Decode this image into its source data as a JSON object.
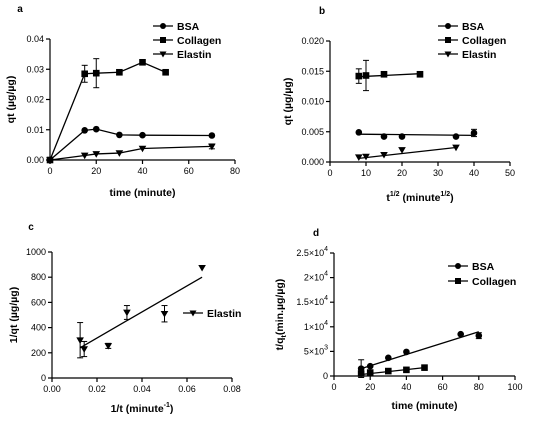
{
  "chart_data": [
    {
      "panel": "a",
      "type": "line",
      "xlabel": "time (minute)",
      "ylabel": "qt (µg/µg)",
      "xlim": [
        0,
        80
      ],
      "ylim": [
        0,
        0.04
      ],
      "xticks": [
        0,
        20,
        40,
        60,
        80
      ],
      "yticks": [
        0.0,
        0.01,
        0.02,
        0.03,
        0.04
      ],
      "ytick_labels": [
        "0.00",
        "0.01",
        "0.02",
        "0.03",
        "0.04"
      ],
      "legend": "right",
      "series": [
        {
          "name": "BSA",
          "marker": "circle",
          "x": [
            0,
            15,
            20,
            30,
            40,
            70
          ],
          "y": [
            0,
            0.0098,
            0.0102,
            0.0083,
            0.0082,
            0.0081
          ],
          "err": [
            0,
            0,
            0,
            0,
            0,
            0
          ]
        },
        {
          "name": "Collagen",
          "marker": "square",
          "x": [
            0,
            15,
            20,
            30,
            40,
            50
          ],
          "y": [
            0,
            0.0285,
            0.0287,
            0.029,
            0.0323,
            0.029
          ],
          "err": [
            0,
            0.0028,
            0.0048,
            0,
            0.0005,
            0.0007
          ]
        },
        {
          "name": "Elastin",
          "marker": "triangle-down",
          "x": [
            0,
            15,
            20,
            30,
            40,
            70
          ],
          "y": [
            0,
            0.0015,
            0.002,
            0.0023,
            0.0038,
            0.0045
          ],
          "err": [
            0,
            0,
            0,
            0,
            0,
            0.0008
          ]
        }
      ]
    },
    {
      "panel": "b",
      "type": "scatter",
      "xlabel_base": "t",
      "xlabel_sup": "1/2",
      "xlabel_unit_base": "(minute",
      "xlabel_unit_sup": "1/2",
      "xlabel_unit_end": ")",
      "ylabel": "qt (µg/µg)",
      "xlim": [
        0,
        50
      ],
      "ylim": [
        0,
        0.02
      ],
      "xticks": [
        0,
        10,
        20,
        30,
        40,
        50
      ],
      "yticks": [
        0,
        0.005,
        0.01,
        0.015,
        0.02
      ],
      "ytick_labels": [
        "0.000",
        "0.005",
        "0.010",
        "0.015",
        "0.020"
      ],
      "legend": "top-right",
      "series": [
        {
          "name": "BSA",
          "marker": "circle",
          "x": [
            8,
            15,
            20,
            35,
            40
          ],
          "y": [
            0.0049,
            0.0042,
            0.0042,
            0.0042,
            0.0048
          ],
          "err": [
            0,
            0,
            0,
            0,
            0.0006
          ],
          "fit": [
            [
              8,
              0.0046
            ],
            [
              40,
              0.0044
            ]
          ]
        },
        {
          "name": "Collagen",
          "marker": "square",
          "x": [
            8,
            10,
            15,
            25
          ],
          "y": [
            0.0142,
            0.0143,
            0.0145,
            0.0145
          ],
          "err": [
            0.0012,
            0.0025,
            0,
            0
          ],
          "fit": [
            [
              8,
              0.0141
            ],
            [
              25,
              0.0146
            ]
          ]
        },
        {
          "name": "Elastin",
          "marker": "triangle-down",
          "x": [
            8,
            10,
            15,
            20,
            35
          ],
          "y": [
            0.0008,
            0.0009,
            0.0012,
            0.002,
            0.0024
          ],
          "err": [
            0,
            0,
            0,
            0,
            0
          ],
          "fit": [
            [
              8,
              0.0006
            ],
            [
              35,
              0.0024
            ]
          ]
        }
      ]
    },
    {
      "panel": "c",
      "type": "scatter",
      "xlabel_base": "1/t (minute",
      "xlabel_sup": "-1",
      "xlabel_end": ")",
      "ylabel": "1/qt (µg/µg)",
      "xlim": [
        0,
        0.08
      ],
      "ylim": [
        0,
        1000
      ],
      "xticks": [
        0,
        0.02,
        0.04,
        0.06,
        0.08
      ],
      "xtick_labels": [
        "0.00",
        "0.02",
        "0.04",
        "0.06",
        "0.08"
      ],
      "yticks": [
        0,
        200,
        400,
        600,
        800,
        1000
      ],
      "legend": "right",
      "series": [
        {
          "name": "Elastin",
          "marker": "triangle-down",
          "x": [
            0.0125,
            0.0143,
            0.025,
            0.0333,
            0.05,
            0.0667
          ],
          "y": [
            300,
            230,
            255,
            520,
            510,
            875
          ],
          "err": [
            140,
            60,
            20,
            55,
            65,
            0
          ],
          "fit": [
            [
              0.0125,
              240
            ],
            [
              0.0667,
              800
            ]
          ]
        }
      ]
    },
    {
      "panel": "d",
      "type": "scatter",
      "xlabel": "time (minute)",
      "ylabel_base": "t/q",
      "ylabel_sub": "t",
      "ylabel_end": "(min.µg/µg)",
      "xlim": [
        0,
        100
      ],
      "ylim": [
        0,
        25000
      ],
      "xticks": [
        0,
        20,
        40,
        60,
        80,
        100
      ],
      "yticks": [
        0,
        5000,
        10000,
        15000,
        20000,
        25000
      ],
      "ytick_labels": [
        [
          "0",
          ""
        ],
        [
          "5×10",
          "3"
        ],
        [
          "1×10",
          "4"
        ],
        [
          "1.5×10",
          "4"
        ],
        [
          "2×10",
          "4"
        ],
        [
          "2.5×10",
          "4"
        ]
      ],
      "legend": "top-right",
      "series": [
        {
          "name": "BSA",
          "marker": "circle",
          "x": [
            15,
            20,
            30,
            40,
            70,
            80
          ],
          "y": [
            1500,
            2000,
            3700,
            4900,
            8500,
            8200
          ],
          "err": [
            1800,
            0,
            0,
            0,
            0,
            600
          ],
          "fit": [
            [
              15,
              1500
            ],
            [
              80,
              9000
            ]
          ]
        },
        {
          "name": "Collagen",
          "marker": "square",
          "x": [
            15,
            20,
            30,
            40,
            50
          ],
          "y": [
            500,
            700,
            1000,
            1250,
            1700
          ],
          "err": [
            0,
            0,
            0,
            0,
            0
          ],
          "fit": [
            [
              15,
              300
            ],
            [
              50,
              1700
            ]
          ]
        }
      ]
    }
  ]
}
